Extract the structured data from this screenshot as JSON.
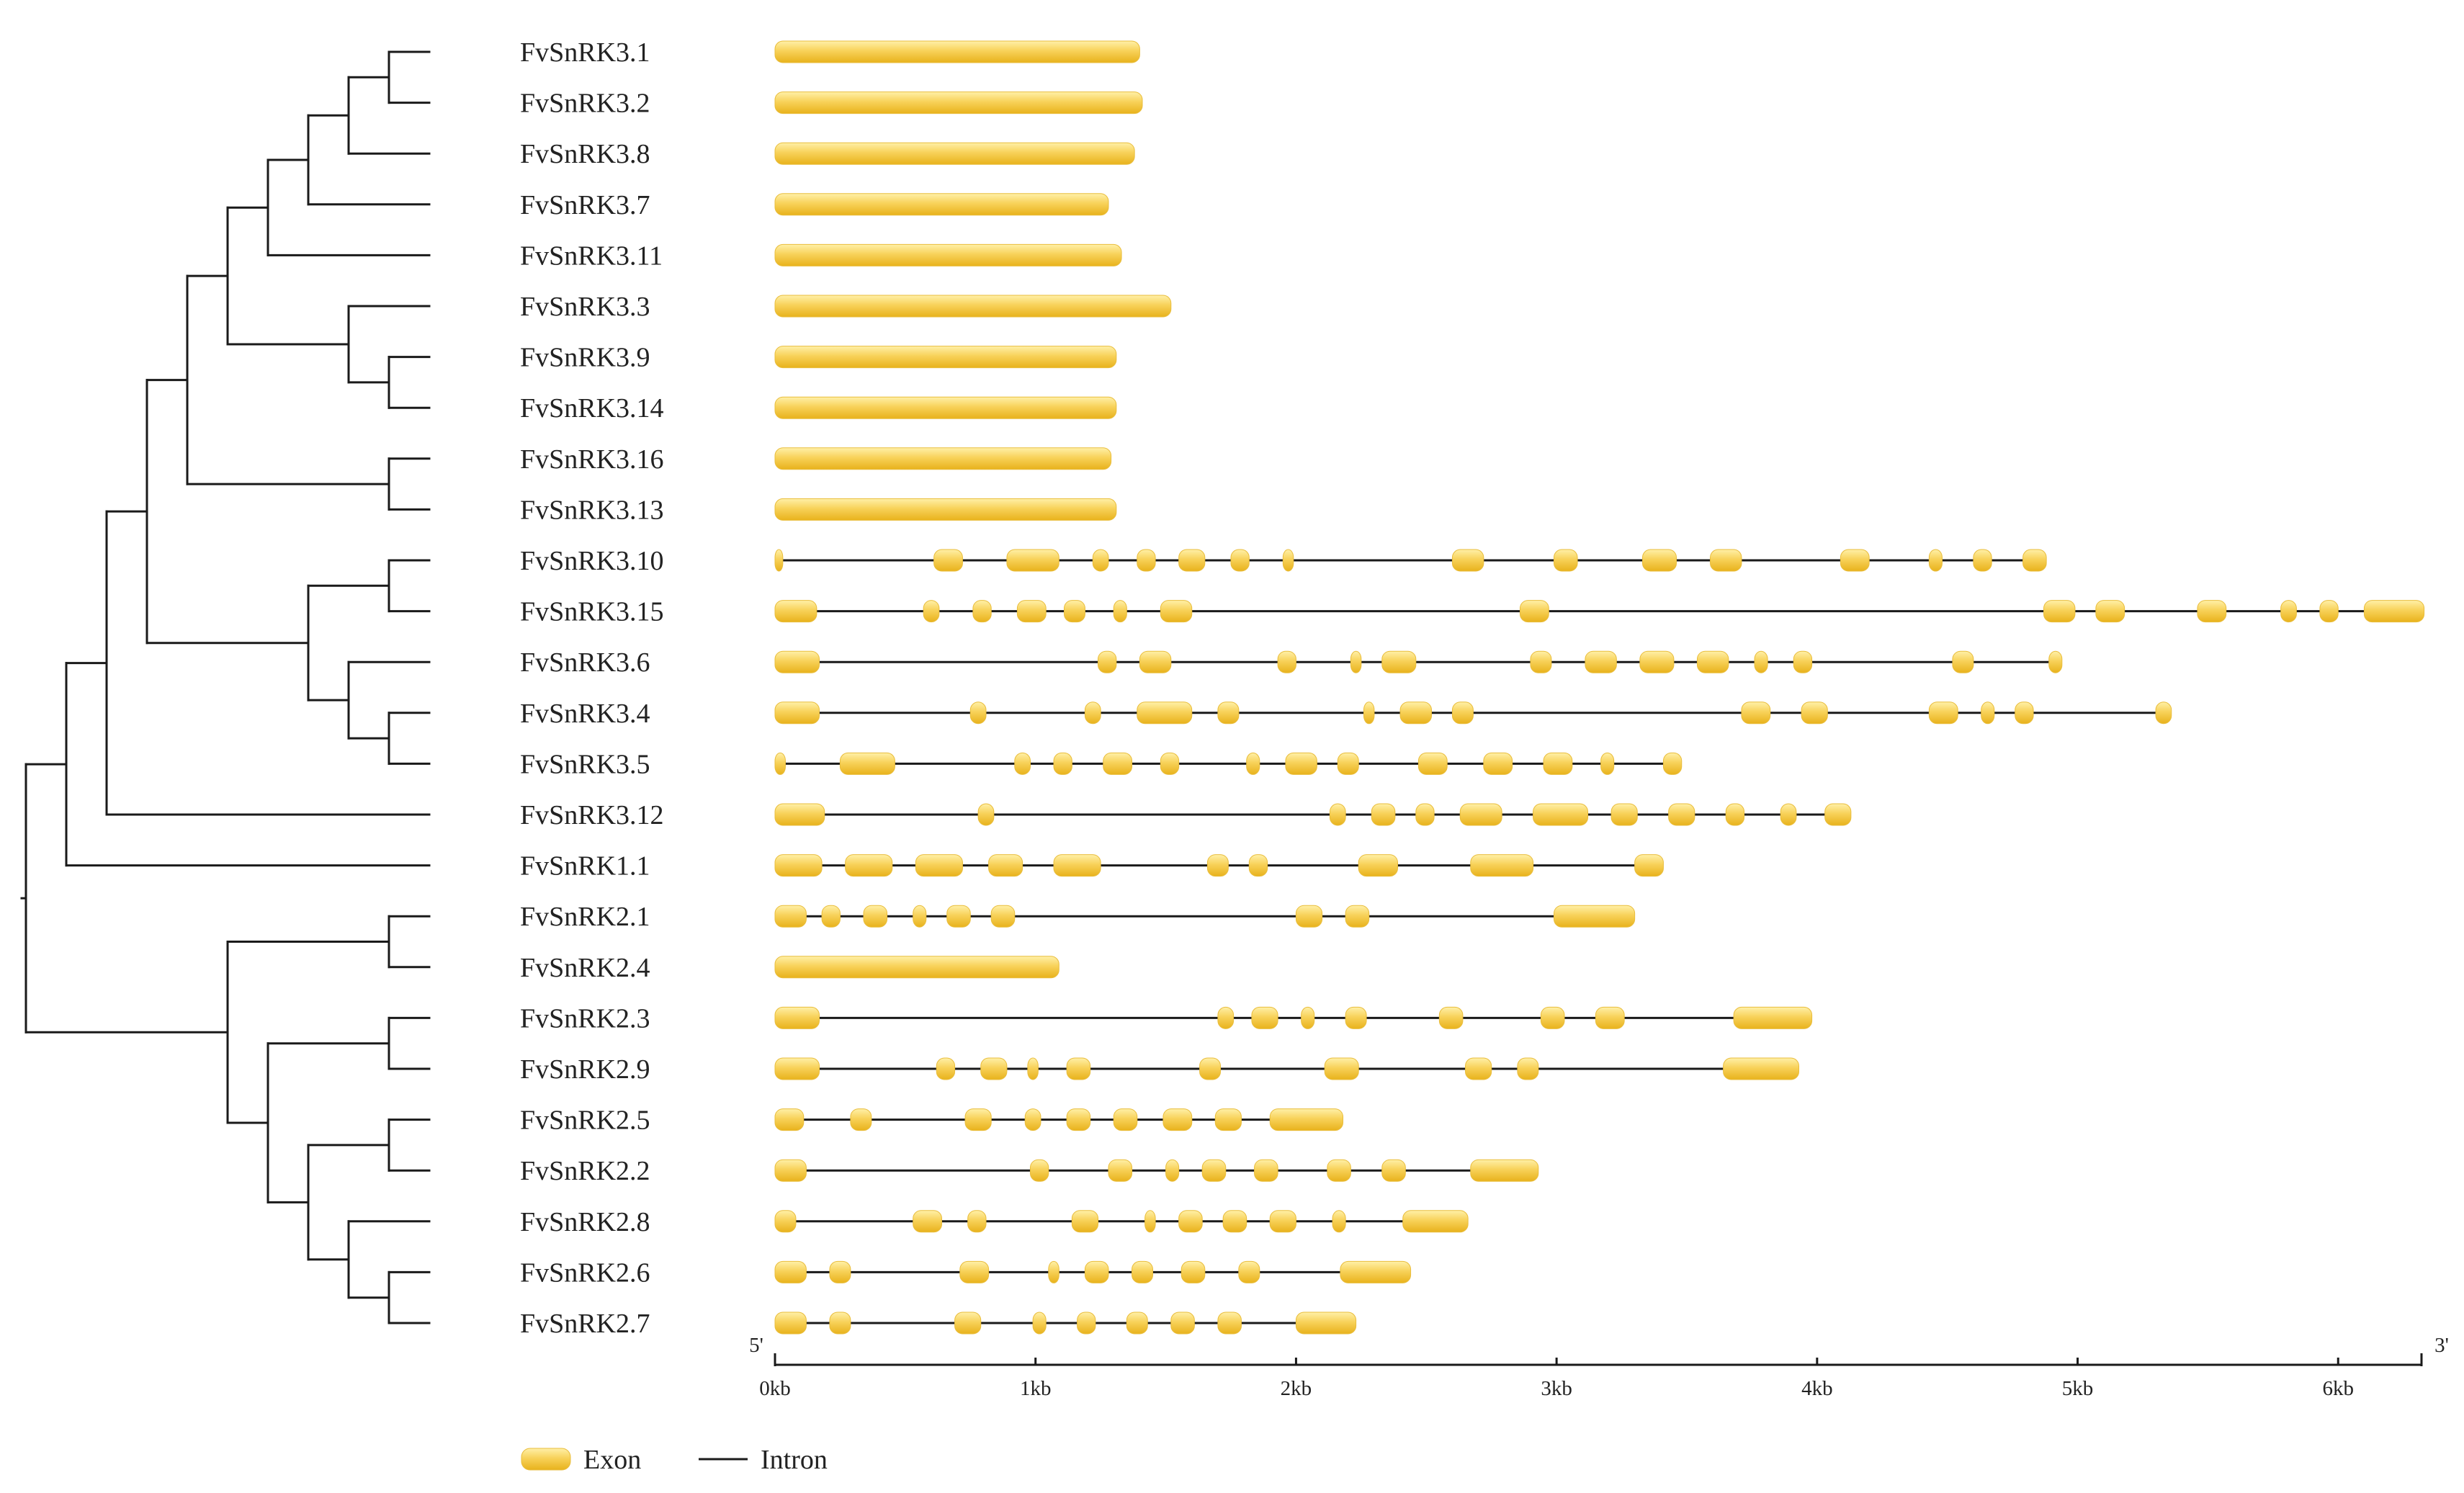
{
  "chart_data": {
    "type": "gene-structure",
    "genes": [
      {
        "name": "FvSnRK3.1",
        "length": 1.4,
        "exons": [
          [
            0,
            1.4
          ]
        ]
      },
      {
        "name": "FvSnRK3.2",
        "length": 1.41,
        "exons": [
          [
            0,
            1.41
          ]
        ]
      },
      {
        "name": "FvSnRK3.8",
        "length": 1.38,
        "exons": [
          [
            0,
            1.38
          ]
        ]
      },
      {
        "name": "FvSnRK3.7",
        "length": 1.28,
        "exons": [
          [
            0,
            1.28
          ]
        ]
      },
      {
        "name": "FvSnRK3.11",
        "length": 1.33,
        "exons": [
          [
            0,
            1.33
          ]
        ]
      },
      {
        "name": "FvSnRK3.3",
        "length": 1.52,
        "exons": [
          [
            0,
            1.52
          ]
        ]
      },
      {
        "name": "FvSnRK3.9",
        "length": 1.31,
        "exons": [
          [
            0,
            1.31
          ]
        ]
      },
      {
        "name": "FvSnRK3.14",
        "length": 1.31,
        "exons": [
          [
            0,
            1.31
          ]
        ]
      },
      {
        "name": "FvSnRK3.16",
        "length": 1.29,
        "exons": [
          [
            0,
            1.29
          ]
        ]
      },
      {
        "name": "FvSnRK3.13",
        "length": 1.31,
        "exons": [
          [
            0,
            1.31
          ]
        ]
      },
      {
        "name": "FvSnRK3.10",
        "length": 4.87,
        "exons": [
          [
            0,
            0.03
          ],
          [
            0.61,
            0.72
          ],
          [
            0.89,
            1.09
          ],
          [
            1.22,
            1.28
          ],
          [
            1.39,
            1.46
          ],
          [
            1.55,
            1.65
          ],
          [
            1.75,
            1.82
          ],
          [
            1.95,
            1.99
          ],
          [
            2.6,
            2.72
          ],
          [
            2.99,
            3.08
          ],
          [
            3.33,
            3.46
          ],
          [
            3.59,
            3.71
          ],
          [
            4.09,
            4.2
          ],
          [
            4.43,
            4.48
          ],
          [
            4.6,
            4.67
          ],
          [
            4.79,
            4.88
          ]
        ]
      },
      {
        "name": "FvSnRK3.15",
        "length": 6.32,
        "exons": [
          [
            0,
            0.16
          ],
          [
            0.57,
            0.63
          ],
          [
            0.76,
            0.83
          ],
          [
            0.93,
            1.04
          ],
          [
            1.11,
            1.19
          ],
          [
            1.3,
            1.35
          ],
          [
            1.48,
            1.6
          ],
          [
            2.86,
            2.97
          ],
          [
            4.87,
            4.99
          ],
          [
            5.07,
            5.18
          ],
          [
            5.46,
            5.57
          ],
          [
            5.78,
            5.84
          ],
          [
            5.93,
            6.0
          ],
          [
            6.1,
            6.33
          ]
        ]
      },
      {
        "name": "FvSnRK3.6",
        "length": 4.94,
        "exons": [
          [
            0,
            0.17
          ],
          [
            1.24,
            1.31
          ],
          [
            1.4,
            1.52
          ],
          [
            1.93,
            2.0
          ],
          [
            2.21,
            2.25
          ],
          [
            2.33,
            2.46
          ],
          [
            2.9,
            2.98
          ],
          [
            3.11,
            3.23
          ],
          [
            3.32,
            3.45
          ],
          [
            3.54,
            3.66
          ],
          [
            3.76,
            3.81
          ],
          [
            3.91,
            3.98
          ],
          [
            4.52,
            4.6
          ],
          [
            4.89,
            4.94
          ]
        ]
      },
      {
        "name": "FvSnRK3.4",
        "length": 5.34,
        "exons": [
          [
            0,
            0.17
          ],
          [
            0.75,
            0.81
          ],
          [
            1.19,
            1.25
          ],
          [
            1.39,
            1.6
          ],
          [
            1.7,
            1.78
          ],
          [
            2.26,
            2.3
          ],
          [
            2.4,
            2.52
          ],
          [
            2.6,
            2.68
          ],
          [
            3.71,
            3.82
          ],
          [
            3.94,
            4.04
          ],
          [
            4.43,
            4.54
          ],
          [
            4.63,
            4.68
          ],
          [
            4.76,
            4.83
          ],
          [
            5.3,
            5.36
          ]
        ]
      },
      {
        "name": "FvSnRK3.5",
        "length": 3.47,
        "exons": [
          [
            0,
            0.04
          ],
          [
            0.25,
            0.46
          ],
          [
            0.92,
            0.98
          ],
          [
            1.07,
            1.14
          ],
          [
            1.26,
            1.37
          ],
          [
            1.48,
            1.55
          ],
          [
            1.81,
            1.86
          ],
          [
            1.96,
            2.08
          ],
          [
            2.16,
            2.24
          ],
          [
            2.47,
            2.58
          ],
          [
            2.72,
            2.83
          ],
          [
            2.95,
            3.06
          ],
          [
            3.17,
            3.22
          ],
          [
            3.41,
            3.48
          ]
        ]
      },
      {
        "name": "FvSnRK3.12",
        "length": 4.13,
        "exons": [
          [
            0,
            0.19
          ],
          [
            0.78,
            0.84
          ],
          [
            2.13,
            2.19
          ],
          [
            2.29,
            2.38
          ],
          [
            2.46,
            2.53
          ],
          [
            2.63,
            2.79
          ],
          [
            2.91,
            3.12
          ],
          [
            3.21,
            3.31
          ],
          [
            3.43,
            3.53
          ],
          [
            3.65,
            3.72
          ],
          [
            3.86,
            3.92
          ],
          [
            4.03,
            4.13
          ]
        ]
      },
      {
        "name": "FvSnRK1.1",
        "length": 3.4,
        "exons": [
          [
            0,
            0.18
          ],
          [
            0.27,
            0.45
          ],
          [
            0.54,
            0.72
          ],
          [
            0.82,
            0.95
          ],
          [
            1.07,
            1.25
          ],
          [
            1.66,
            1.74
          ],
          [
            1.82,
            1.89
          ],
          [
            2.24,
            2.39
          ],
          [
            2.67,
            2.91
          ],
          [
            3.3,
            3.41
          ]
        ]
      },
      {
        "name": "FvSnRK2.1",
        "length": 3.29,
        "exons": [
          [
            0,
            0.12
          ],
          [
            0.18,
            0.25
          ],
          [
            0.34,
            0.43
          ],
          [
            0.53,
            0.58
          ],
          [
            0.66,
            0.75
          ],
          [
            0.83,
            0.92
          ],
          [
            2.0,
            2.1
          ],
          [
            2.19,
            2.28
          ],
          [
            2.99,
            3.3
          ]
        ]
      },
      {
        "name": "FvSnRK2.4",
        "length": 1.09,
        "exons": [
          [
            0,
            1.09
          ]
        ]
      },
      {
        "name": "FvSnRK2.3",
        "length": 3.97,
        "exons": [
          [
            0,
            0.17
          ],
          [
            1.7,
            1.76
          ],
          [
            1.83,
            1.93
          ],
          [
            2.02,
            2.07
          ],
          [
            2.19,
            2.27
          ],
          [
            2.55,
            2.64
          ],
          [
            2.94,
            3.03
          ],
          [
            3.15,
            3.26
          ],
          [
            3.68,
            3.98
          ]
        ]
      },
      {
        "name": "FvSnRK2.9",
        "length": 3.92,
        "exons": [
          [
            0,
            0.17
          ],
          [
            0.62,
            0.69
          ],
          [
            0.79,
            0.89
          ],
          [
            0.97,
            1.01
          ],
          [
            1.12,
            1.21
          ],
          [
            1.63,
            1.71
          ],
          [
            2.11,
            2.24
          ],
          [
            2.65,
            2.75
          ],
          [
            2.85,
            2.93
          ],
          [
            3.64,
            3.93
          ]
        ]
      },
      {
        "name": "FvSnRK2.5",
        "length": 2.17,
        "exons": [
          [
            0,
            0.11
          ],
          [
            0.29,
            0.37
          ],
          [
            0.73,
            0.83
          ],
          [
            0.96,
            1.02
          ],
          [
            1.12,
            1.21
          ],
          [
            1.3,
            1.39
          ],
          [
            1.49,
            1.6
          ],
          [
            1.69,
            1.79
          ],
          [
            1.9,
            2.18
          ]
        ]
      },
      {
        "name": "FvSnRK2.2",
        "length": 2.93,
        "exons": [
          [
            0,
            0.12
          ],
          [
            0.98,
            1.05
          ],
          [
            1.28,
            1.37
          ],
          [
            1.5,
            1.55
          ],
          [
            1.64,
            1.73
          ],
          [
            1.84,
            1.93
          ],
          [
            2.12,
            2.21
          ],
          [
            2.33,
            2.42
          ],
          [
            2.67,
            2.93
          ]
        ]
      },
      {
        "name": "FvSnRK2.8",
        "length": 2.65,
        "exons": [
          [
            0,
            0.08
          ],
          [
            0.53,
            0.64
          ],
          [
            0.74,
            0.81
          ],
          [
            1.14,
            1.24
          ],
          [
            1.42,
            1.46
          ],
          [
            1.55,
            1.64
          ],
          [
            1.72,
            1.81
          ],
          [
            1.9,
            2.0
          ],
          [
            2.14,
            2.19
          ],
          [
            2.41,
            2.66
          ]
        ]
      },
      {
        "name": "FvSnRK2.6",
        "length": 2.43,
        "exons": [
          [
            0,
            0.12
          ],
          [
            0.21,
            0.29
          ],
          [
            0.71,
            0.82
          ],
          [
            1.05,
            1.09
          ],
          [
            1.19,
            1.28
          ],
          [
            1.37,
            1.45
          ],
          [
            1.56,
            1.65
          ],
          [
            1.78,
            1.86
          ],
          [
            2.17,
            2.44
          ]
        ]
      },
      {
        "name": "FvSnRK2.7",
        "length": 2.22,
        "exons": [
          [
            0,
            0.12
          ],
          [
            0.21,
            0.29
          ],
          [
            0.69,
            0.79
          ],
          [
            0.99,
            1.04
          ],
          [
            1.16,
            1.23
          ],
          [
            1.35,
            1.43
          ],
          [
            1.52,
            1.61
          ],
          [
            1.7,
            1.79
          ],
          [
            2.0,
            2.23
          ]
        ]
      }
    ],
    "tree": [
      {
        "id": "n1",
        "children": [
          "FvSnRK3.1",
          "FvSnRK3.2"
        ]
      },
      {
        "id": "n2",
        "children": [
          "n1",
          "FvSnRK3.8"
        ]
      },
      {
        "id": "n3",
        "children": [
          "n2",
          "FvSnRK3.7"
        ]
      },
      {
        "id": "n4",
        "children": [
          "n3",
          "FvSnRK3.11"
        ]
      },
      {
        "id": "n5",
        "children": [
          "FvSnRK3.9",
          "FvSnRK3.14"
        ]
      },
      {
        "id": "n6",
        "children": [
          "FvSnRK3.3",
          "n5"
        ]
      },
      {
        "id": "n7",
        "children": [
          "n4",
          "n6"
        ]
      },
      {
        "id": "n8",
        "children": [
          "FvSnRK3.16",
          "FvSnRK3.13"
        ]
      },
      {
        "id": "n9",
        "children": [
          "n7",
          "n8"
        ]
      },
      {
        "id": "n10",
        "children": [
          "FvSnRK3.10",
          "FvSnRK3.15"
        ]
      },
      {
        "id": "n11",
        "children": [
          "FvSnRK3.4",
          "FvSnRK3.5"
        ]
      },
      {
        "id": "n12",
        "children": [
          "FvSnRK3.6",
          "n11"
        ]
      },
      {
        "id": "n13",
        "children": [
          "n10",
          "n12"
        ]
      },
      {
        "id": "n14",
        "children": [
          "n9",
          "n13"
        ]
      },
      {
        "id": "n15",
        "children": [
          "n14",
          "FvSnRK3.12"
        ]
      },
      {
        "id": "n16",
        "children": [
          "n15",
          "FvSnRK1.1"
        ]
      },
      {
        "id": "n17",
        "children": [
          "FvSnRK2.1",
          "FvSnRK2.4"
        ]
      },
      {
        "id": "n18",
        "children": [
          "FvSnRK2.3",
          "FvSnRK2.9"
        ]
      },
      {
        "id": "n19",
        "children": [
          "FvSnRK2.5",
          "FvSnRK2.2"
        ]
      },
      {
        "id": "n20",
        "children": [
          "FvSnRK2.6",
          "FvSnRK2.7"
        ]
      },
      {
        "id": "n21",
        "children": [
          "FvSnRK2.8",
          "n20"
        ]
      },
      {
        "id": "n22",
        "children": [
          "n19",
          "n21"
        ]
      },
      {
        "id": "n23",
        "children": [
          "n18",
          "n22"
        ]
      },
      {
        "id": "n24",
        "children": [
          "n17",
          "n23"
        ]
      },
      {
        "id": "root",
        "children": [
          "n16",
          "n24"
        ]
      }
    ],
    "axis": {
      "unit": "kb",
      "ticks": [
        0,
        1,
        2,
        3,
        4,
        5,
        6
      ],
      "tick_labels": [
        "0kb",
        "1kb",
        "2kb",
        "3kb",
        "4kb",
        "5kb",
        "6kb"
      ],
      "xlim": [
        0,
        6.32
      ],
      "start_label": "5'",
      "end_label": "3'"
    },
    "legend": {
      "exon_label": "Exon",
      "intron_label": "Intron"
    },
    "colors": {
      "exon_light": "#fff0a8",
      "exon_mid": "#f8d25a",
      "exon_dark": "#e8b21c",
      "line": "#1a1a1a",
      "text": "#222222"
    }
  }
}
